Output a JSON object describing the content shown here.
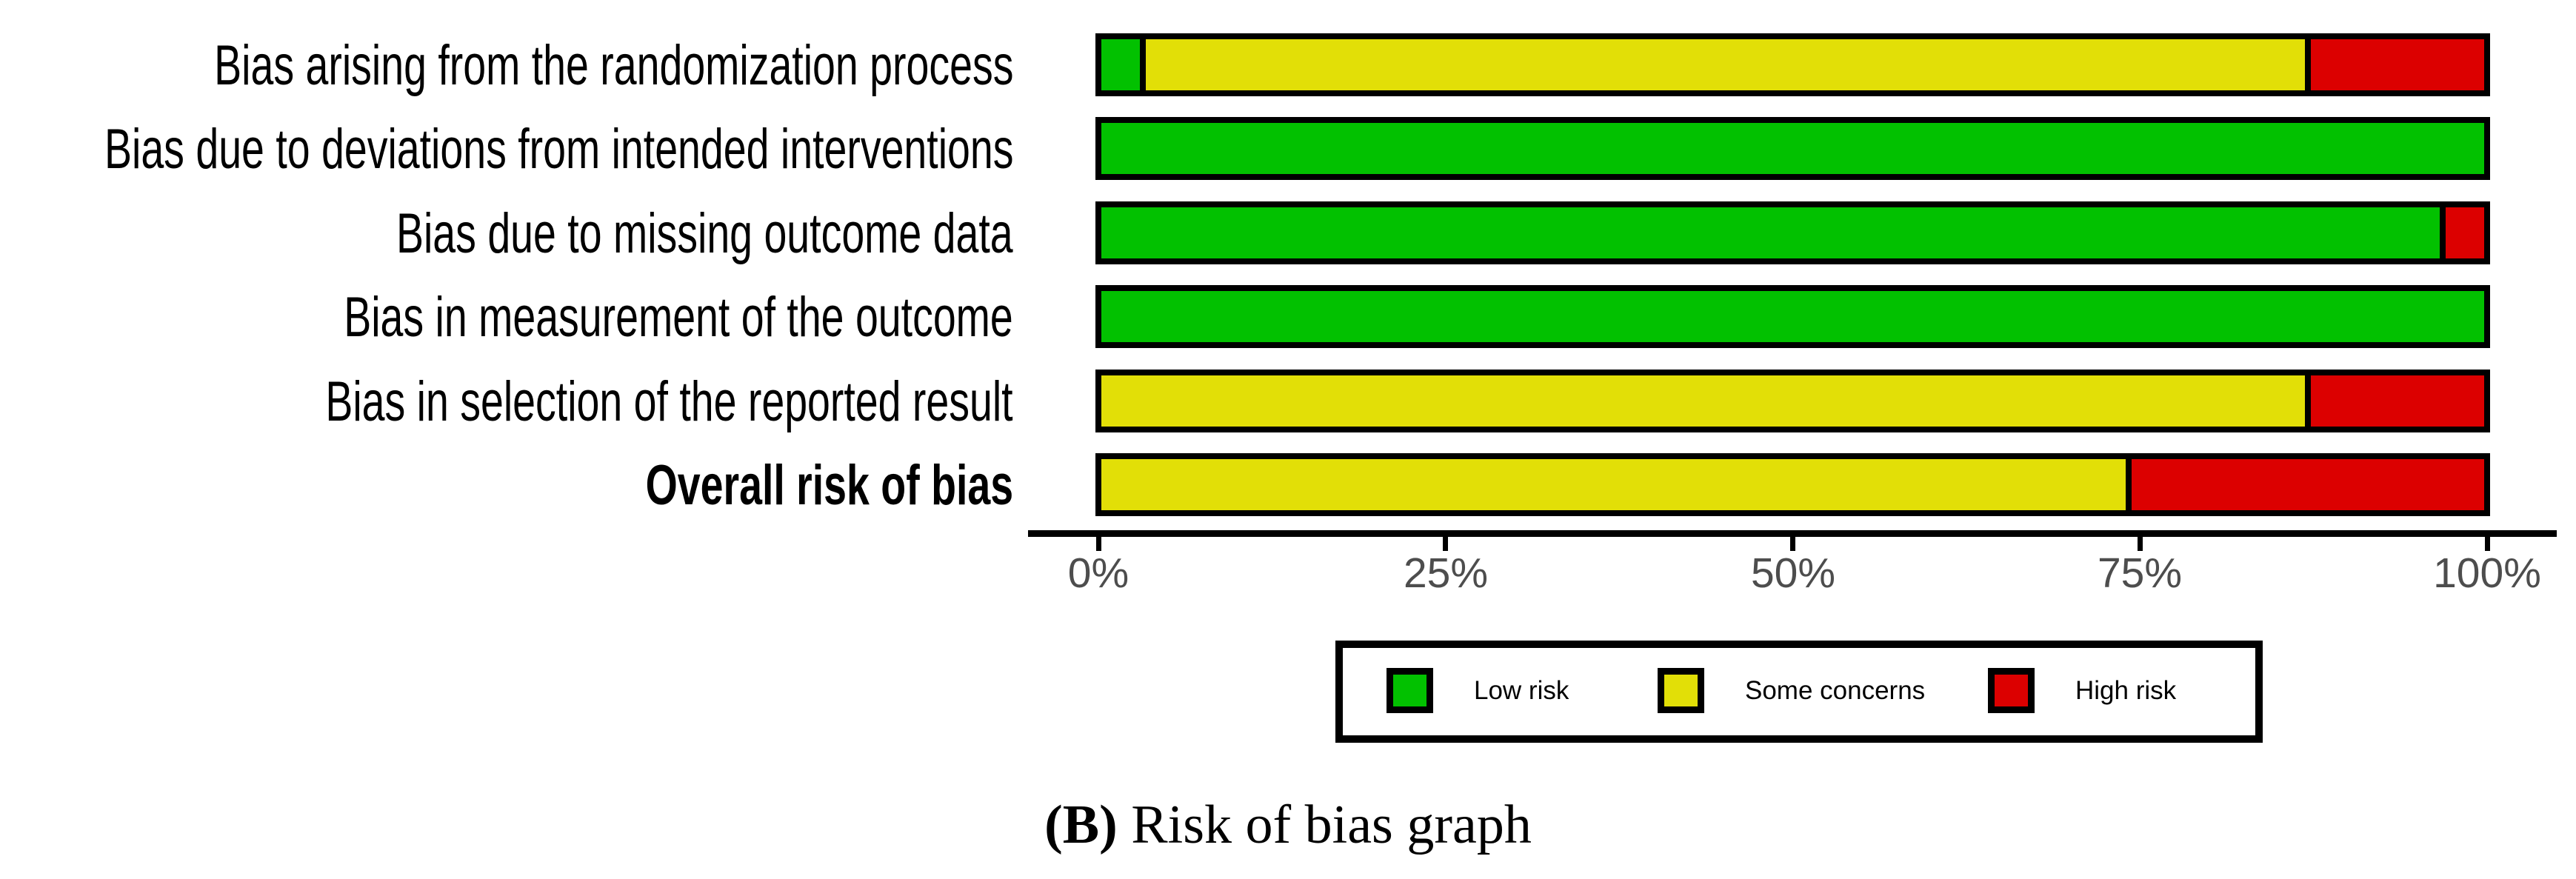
{
  "figure": {
    "caption": {
      "group_label": "(B)",
      "text": " Risk of bias graph"
    }
  },
  "chart_data": {
    "type": "bar",
    "orientation": "horizontal",
    "stacked": true,
    "unit": "percent",
    "title": "",
    "xlabel": "",
    "ylabel": "",
    "categories": [
      {
        "label": "Bias arising from the randomization process",
        "emphasis": false
      },
      {
        "label": "Bias due to deviations from intended interventions",
        "emphasis": false
      },
      {
        "label": "Bias due to missing outcome data",
        "emphasis": false
      },
      {
        "label": "Bias in measurement of the outcome",
        "emphasis": false
      },
      {
        "label": "Bias in selection of the reported result",
        "emphasis": false
      },
      {
        "label": "Overall risk of bias",
        "emphasis": true
      }
    ],
    "series": [
      {
        "name": "Low risk",
        "color": "#02c100",
        "values": [
          3.2,
          100,
          96.8,
          100,
          0,
          0
        ]
      },
      {
        "name": "Some concerns",
        "color": "#e2df07",
        "values": [
          83.9,
          0,
          0,
          0,
          87.1,
          74.2
        ]
      },
      {
        "name": "High risk",
        "color": "#dc0000",
        "values": [
          12.9,
          0,
          3.2,
          0,
          12.9,
          25.8
        ]
      }
    ],
    "x_axis": {
      "range": [
        0,
        100
      ],
      "tick_values": [
        0,
        25,
        50,
        75,
        100
      ],
      "tick_labels": [
        "0%",
        "25%",
        "50%",
        "75%",
        "100%"
      ],
      "grid": false
    },
    "legend": {
      "position": "bottom",
      "entries": [
        "Low risk",
        "Some concerns",
        "High risk"
      ]
    },
    "styling": {
      "segment_border_color": "#000000",
      "axis_color": "#000000",
      "tick_label_color": "#4d4d4d",
      "background": "#ffffff"
    }
  }
}
